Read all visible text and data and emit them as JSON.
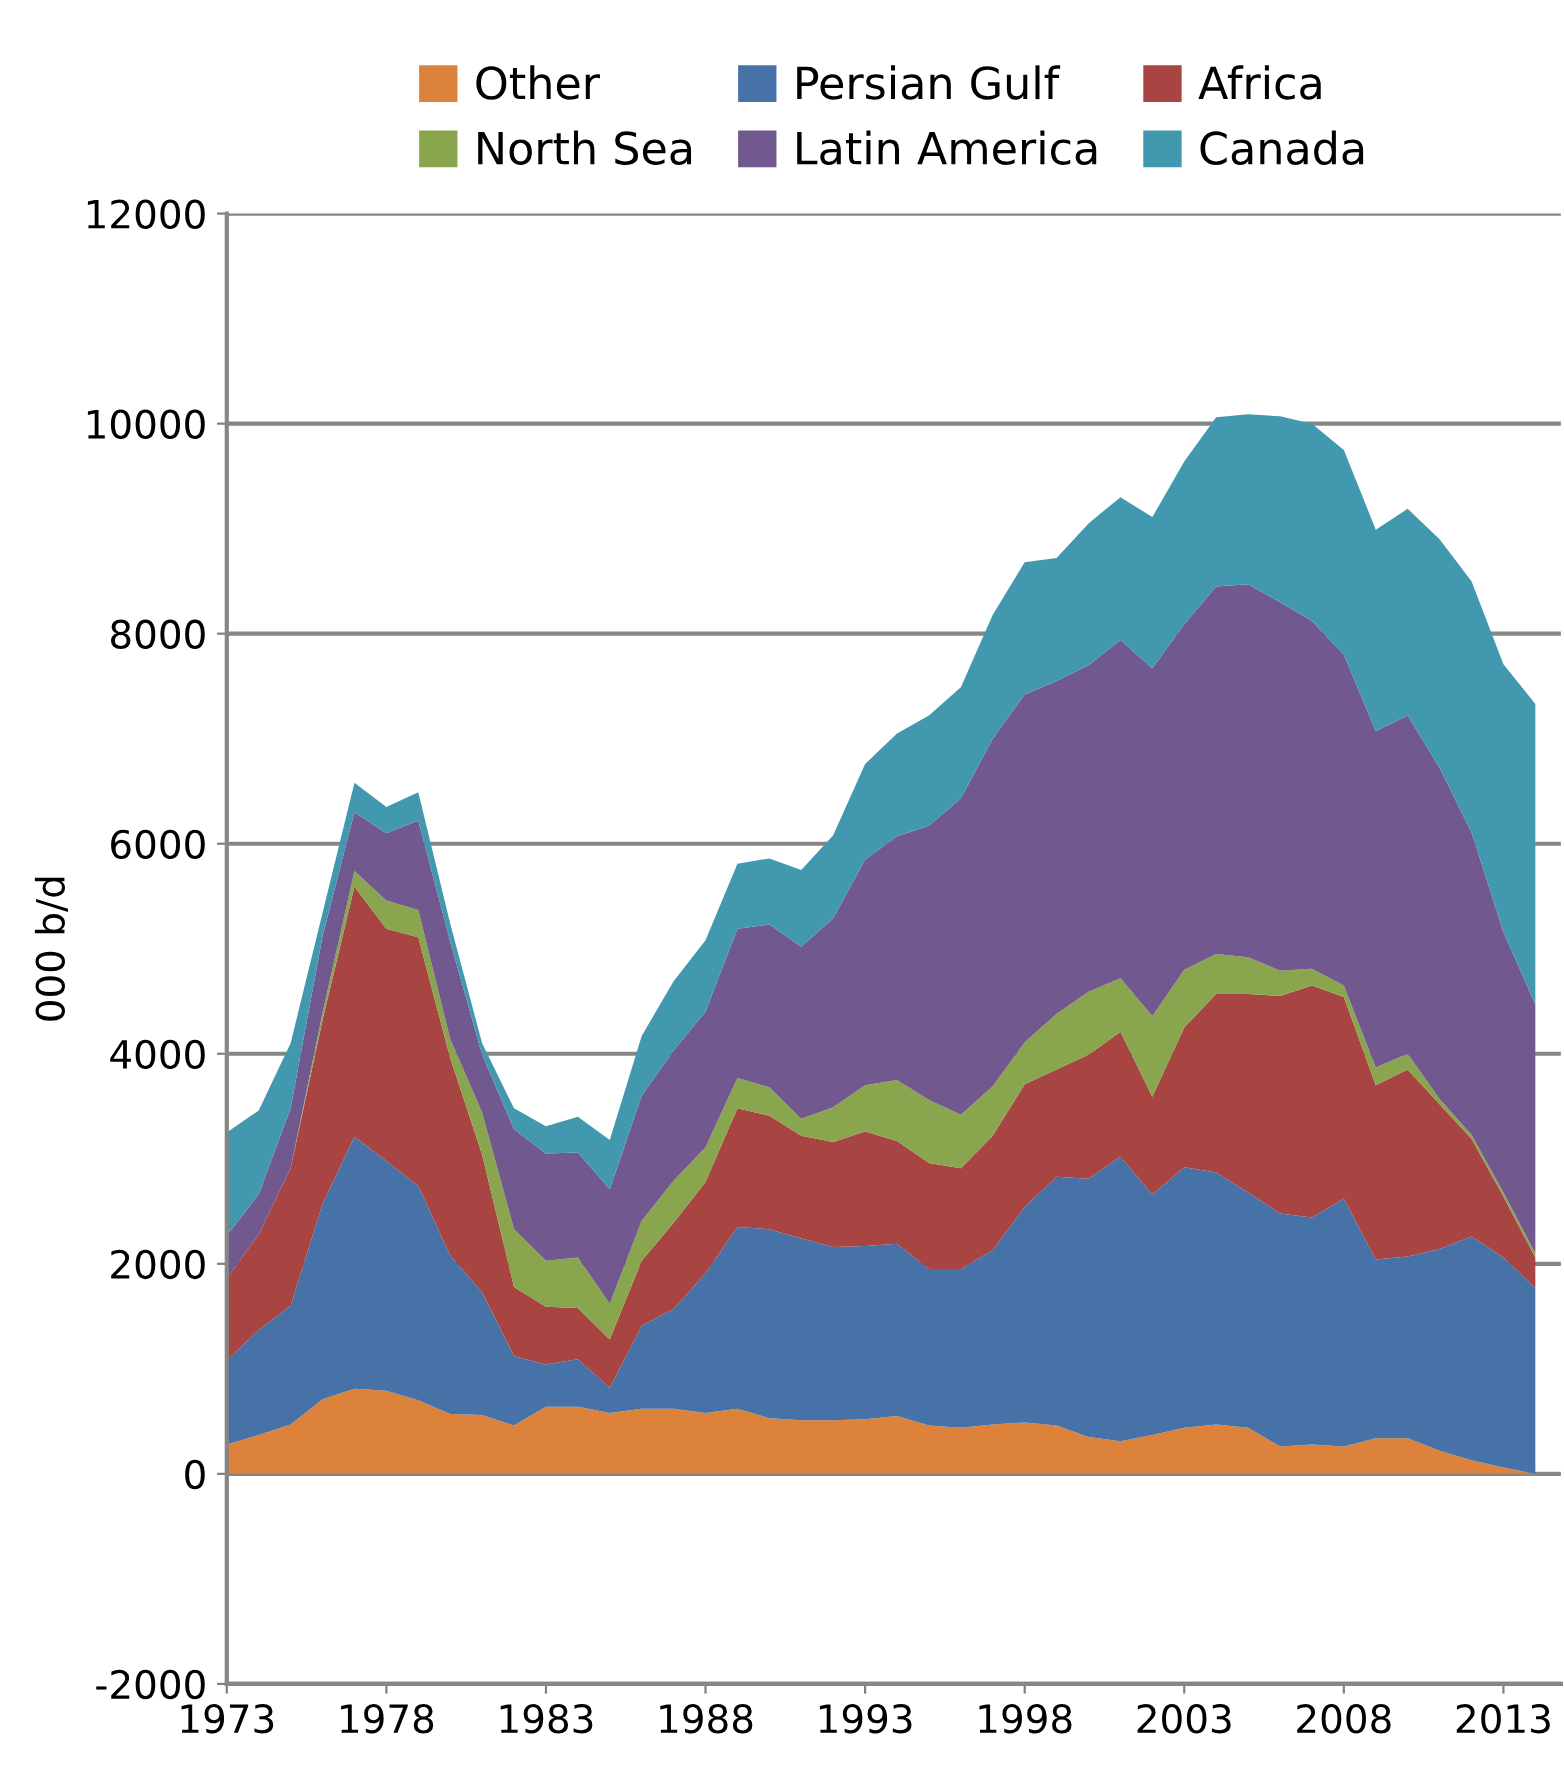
{
  "chart_data": {
    "type": "area",
    "stacked": true,
    "ylabel": "000 b/d",
    "x": [
      1973,
      1974,
      1975,
      1976,
      1977,
      1978,
      1979,
      1980,
      1981,
      1982,
      1983,
      1984,
      1985,
      1986,
      1987,
      1988,
      1989,
      1990,
      1991,
      1992,
      1993,
      1994,
      1995,
      1996,
      1997,
      1998,
      1999,
      2000,
      2001,
      2002,
      2003,
      2004,
      2005,
      2006,
      2007,
      2008,
      2009,
      2010,
      2011,
      2012,
      2013,
      2014
    ],
    "series": [
      {
        "name": "Other",
        "color": "#dc823b",
        "values": [
          280,
          370,
          470,
          710,
          810,
          790,
          700,
          570,
          560,
          460,
          640,
          640,
          580,
          620,
          620,
          580,
          620,
          530,
          510,
          510,
          520,
          550,
          460,
          440,
          470,
          490,
          460,
          350,
          310,
          370,
          440,
          470,
          440,
          260,
          280,
          260,
          340,
          340,
          220,
          130,
          60,
          0
        ]
      },
      {
        "name": "Persian Gulf",
        "color": "#4672a7",
        "values": [
          800,
          1000,
          1130,
          1860,
          2400,
          2190,
          2040,
          1510,
          1170,
          660,
          400,
          450,
          240,
          790,
          950,
          1330,
          1730,
          1800,
          1730,
          1650,
          1650,
          1640,
          1490,
          1510,
          1660,
          2050,
          2370,
          2460,
          2710,
          2290,
          2480,
          2400,
          2240,
          2220,
          2160,
          2360,
          1700,
          1730,
          1920,
          2130,
          2000,
          1770
        ]
      },
      {
        "name": "Africa",
        "color": "#a84542",
        "values": [
          780,
          910,
          1310,
          1750,
          2380,
          2210,
          2370,
          1880,
          1310,
          660,
          550,
          490,
          460,
          620,
          820,
          870,
          1130,
          1080,
          980,
          1000,
          1090,
          980,
          1010,
          960,
          1090,
          1170,
          1020,
          1180,
          1190,
          930,
          1330,
          1700,
          1890,
          2070,
          2210,
          1920,
          1660,
          1780,
          1380,
          930,
          580,
          290
        ]
      },
      {
        "name": "North Sea",
        "color": "#89a54e",
        "values": [
          0,
          0,
          0,
          70,
          150,
          270,
          260,
          180,
          400,
          550,
          440,
          480,
          340,
          380,
          400,
          330,
          290,
          270,
          160,
          330,
          440,
          580,
          600,
          510,
          470,
          400,
          530,
          600,
          510,
          770,
          550,
          380,
          350,
          240,
          160,
          110,
          170,
          150,
          50,
          40,
          40,
          40
        ]
      },
      {
        "name": "Latin America",
        "color": "#71588f",
        "values": [
          410,
          380,
          570,
          730,
          560,
          640,
          850,
          930,
          550,
          950,
          1020,
          1000,
          1090,
          1190,
          1240,
          1290,
          1420,
          1550,
          1640,
          1800,
          2150,
          2320,
          2610,
          3010,
          3310,
          3310,
          3170,
          3110,
          3220,
          3310,
          3290,
          3500,
          3550,
          3510,
          3310,
          3150,
          3200,
          3220,
          3150,
          2880,
          2480,
          2370
        ]
      },
      {
        "name": "Canada",
        "color": "#4198af",
        "values": [
          980,
          800,
          620,
          220,
          280,
          250,
          270,
          170,
          110,
          200,
          260,
          340,
          470,
          570,
          660,
          680,
          620,
          630,
          730,
          790,
          910,
          980,
          1050,
          1060,
          1180,
          1260,
          1170,
          1350,
          1360,
          1440,
          1550,
          1610,
          1620,
          1770,
          1880,
          1950,
          1920,
          1970,
          2180,
          2390,
          2550,
          2860
        ]
      }
    ],
    "xlim": [
      1973,
      2014.8
    ],
    "xticks": [
      1973,
      1978,
      1983,
      1988,
      1993,
      1998,
      2003,
      2008,
      2013
    ],
    "ylim": [
      -2000,
      12000
    ],
    "yticks": [
      -2000,
      0,
      2000,
      4000,
      6000,
      8000,
      10000,
      12000
    ],
    "grid": "y",
    "legend": "top"
  }
}
